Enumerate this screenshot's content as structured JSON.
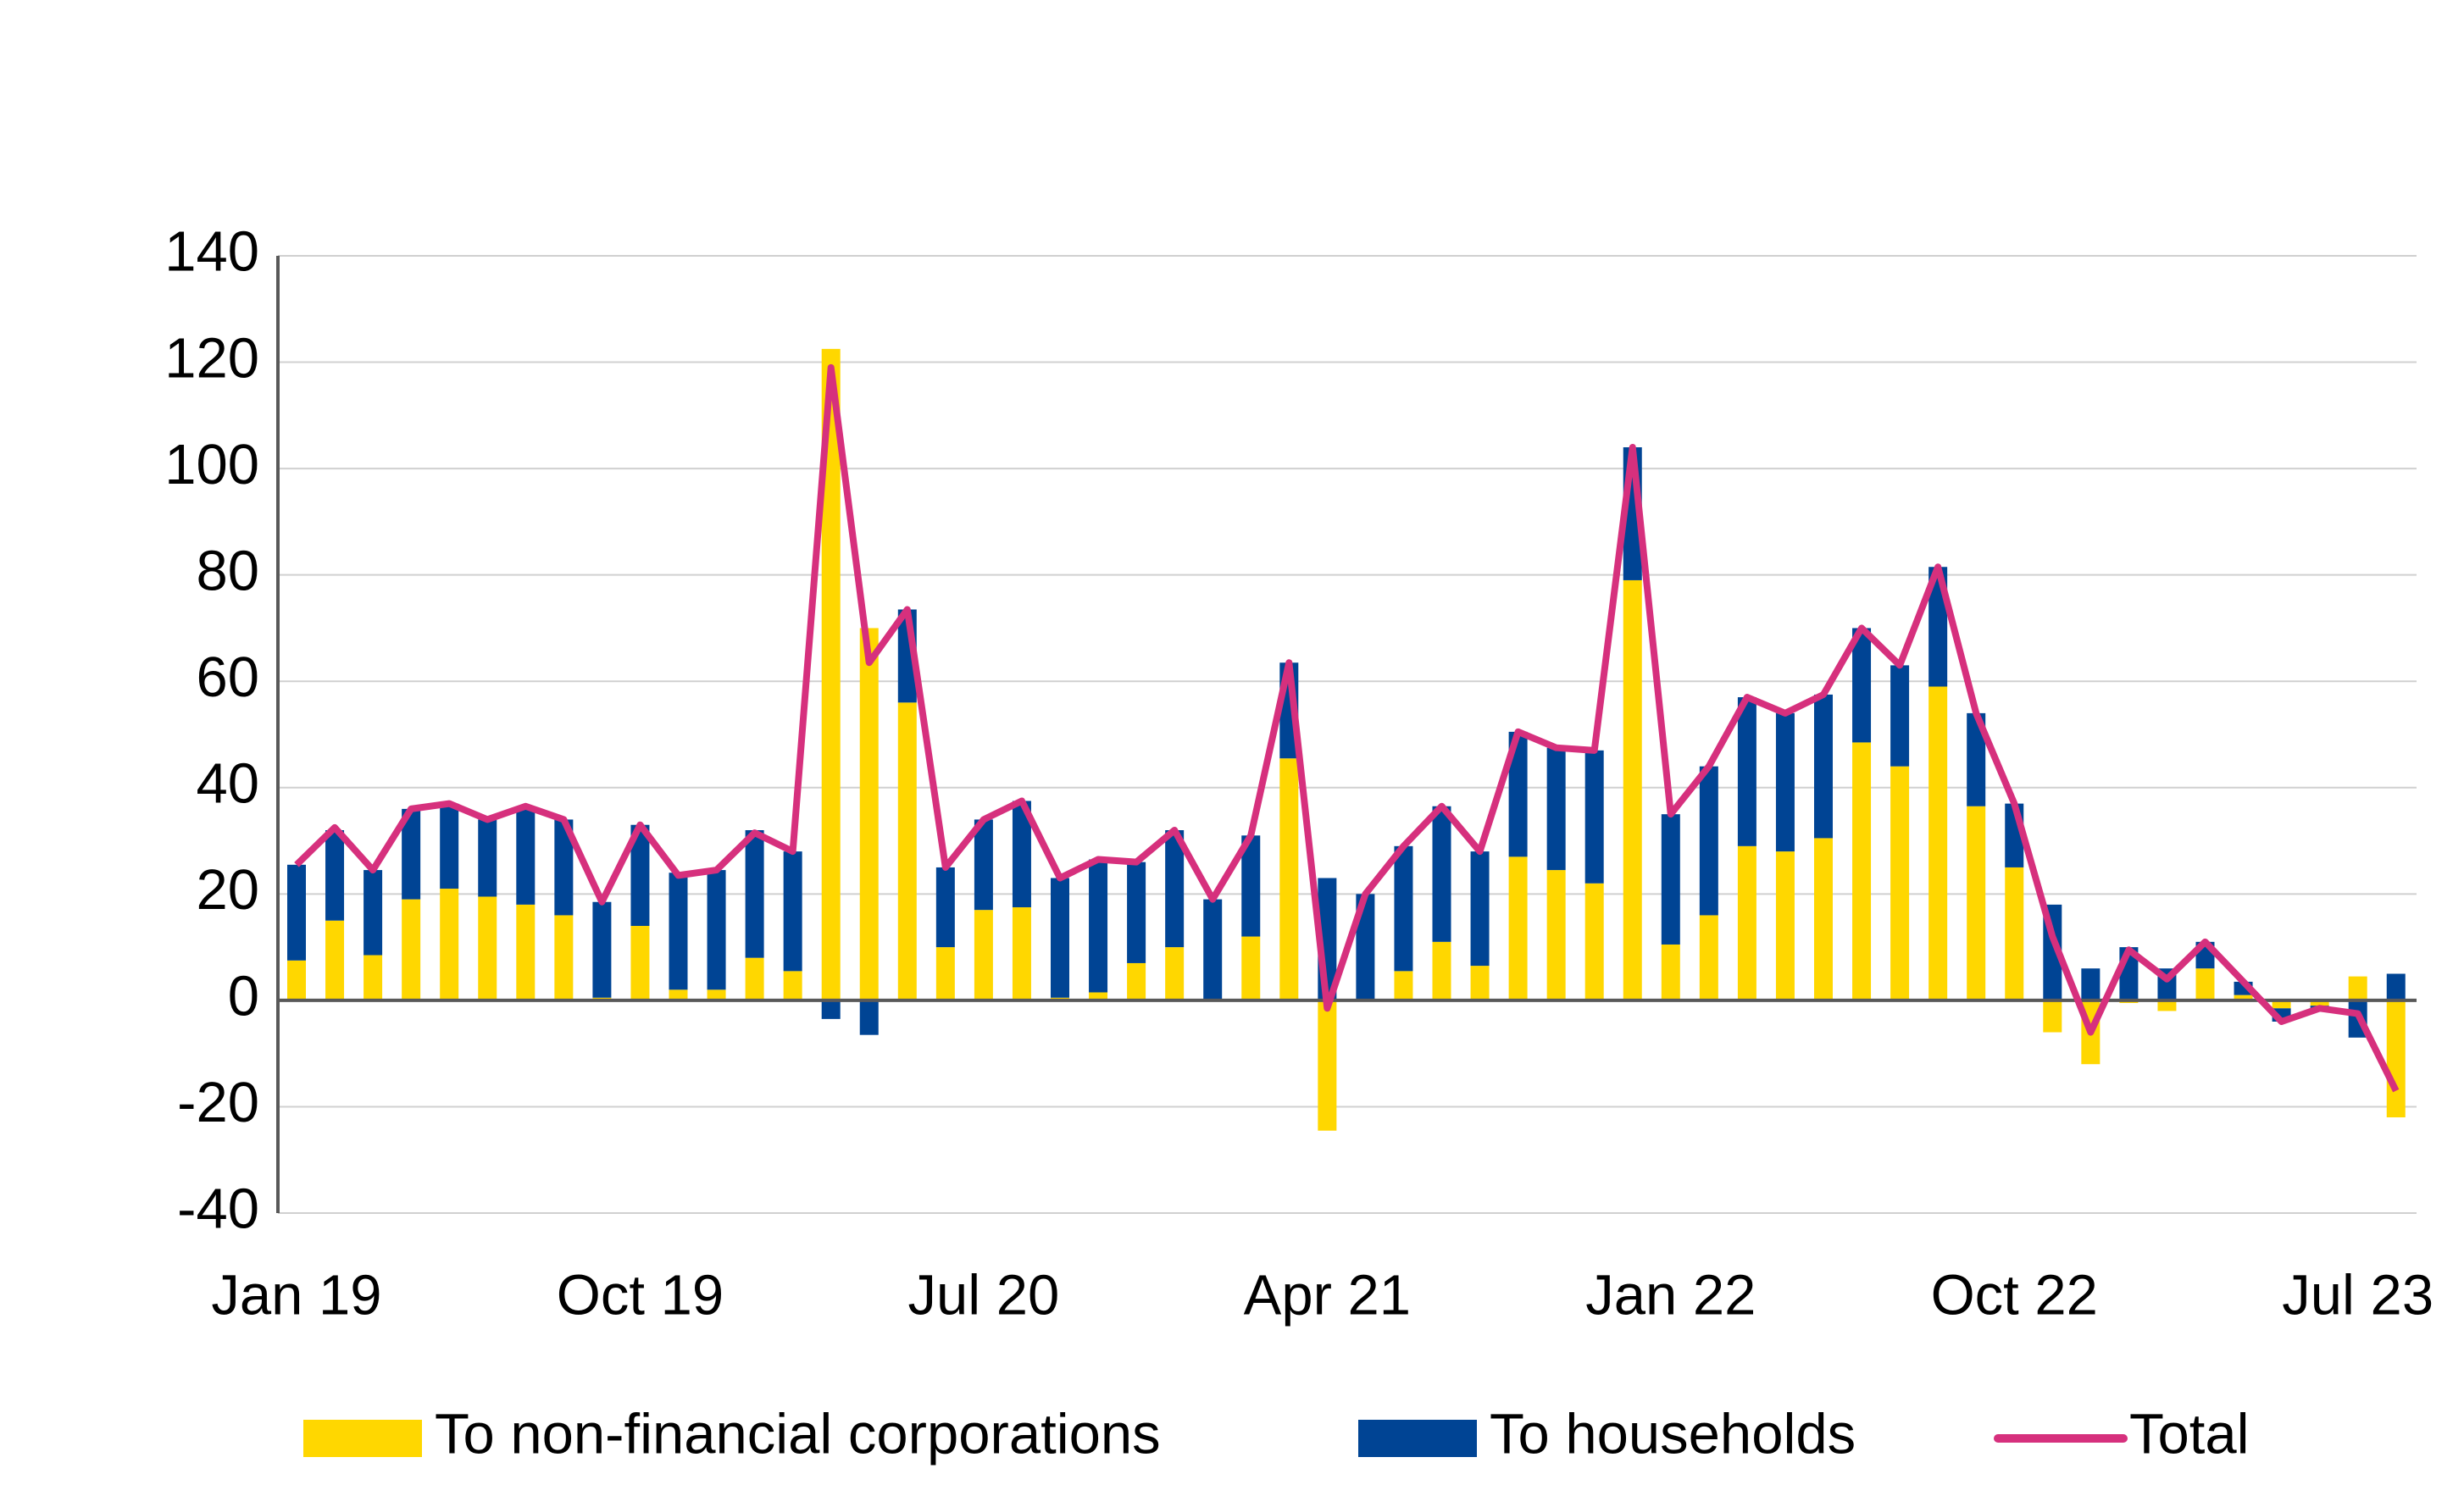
{
  "chart_data": {
    "type": "bar",
    "categories": [
      "Jan 19",
      null,
      null,
      null,
      null,
      null,
      null,
      null,
      null,
      "Oct 19",
      null,
      null,
      null,
      null,
      null,
      null,
      null,
      null,
      "Jul 20",
      null,
      null,
      null,
      null,
      null,
      null,
      null,
      null,
      "Apr 21",
      null,
      null,
      null,
      null,
      null,
      null,
      null,
      null,
      "Jan 22",
      null,
      null,
      null,
      null,
      null,
      null,
      null,
      null,
      "Oct 22",
      null,
      null,
      null,
      null,
      null,
      null,
      null,
      null,
      "Jul 23",
      null
    ],
    "series": [
      {
        "name": "To non-financial corporations",
        "type": "bar",
        "color": "#ffd700",
        "values": [
          7.5,
          15,
          8.5,
          19,
          21,
          19.5,
          18,
          16,
          0.5,
          14,
          2,
          2,
          8,
          5.5,
          122.5,
          70,
          56,
          10,
          17,
          17.5,
          0.5,
          1.5,
          7,
          10,
          0,
          12,
          45.5,
          -24.5,
          0,
          5.5,
          11,
          6.5,
          27,
          24.5,
          22,
          79,
          10.5,
          16,
          29,
          28,
          30.5,
          48.5,
          44,
          59,
          36.5,
          25,
          -6,
          -12,
          -0.5,
          -2,
          6,
          1,
          -1.5,
          -1,
          4.5,
          -22
        ]
      },
      {
        "name": "To households",
        "type": "bar",
        "color": "#004494",
        "values": [
          18,
          17,
          16,
          17,
          16,
          14.5,
          18.5,
          18,
          18,
          19,
          22,
          22.5,
          24,
          22.5,
          -3.5,
          -6.5,
          17.5,
          15,
          17,
          20,
          22.5,
          25,
          19,
          22,
          19,
          19,
          18,
          23,
          20,
          23.5,
          25.5,
          21.5,
          23.5,
          23,
          25,
          25,
          24.5,
          28,
          28,
          26,
          27,
          21.5,
          19,
          22.5,
          17.5,
          12,
          18,
          6,
          10,
          6,
          5,
          2.5,
          -2.5,
          -0.5,
          -7,
          5
        ]
      },
      {
        "name": "Total",
        "type": "line",
        "color": "#d6307d",
        "values": [
          25.5,
          32.5,
          24.5,
          36,
          37,
          34,
          36.5,
          34,
          18.5,
          33,
          23.5,
          24.5,
          31.5,
          28,
          119,
          63.5,
          73.5,
          25,
          34,
          37.5,
          23,
          26.5,
          26,
          32,
          19,
          31,
          63.5,
          -1.5,
          20,
          29,
          36.5,
          28,
          50.5,
          47.5,
          47,
          104,
          35,
          44,
          57,
          54,
          57.5,
          70,
          63,
          81.5,
          54,
          37,
          12,
          -6,
          9.5,
          4,
          11,
          3.5,
          -4,
          -1.5,
          -2.5,
          -17
        ]
      }
    ],
    "ylim": [
      -40,
      140
    ],
    "yticks": [
      -40,
      -20,
      0,
      20,
      40,
      60,
      80,
      100,
      120,
      140
    ],
    "grid": true
  }
}
